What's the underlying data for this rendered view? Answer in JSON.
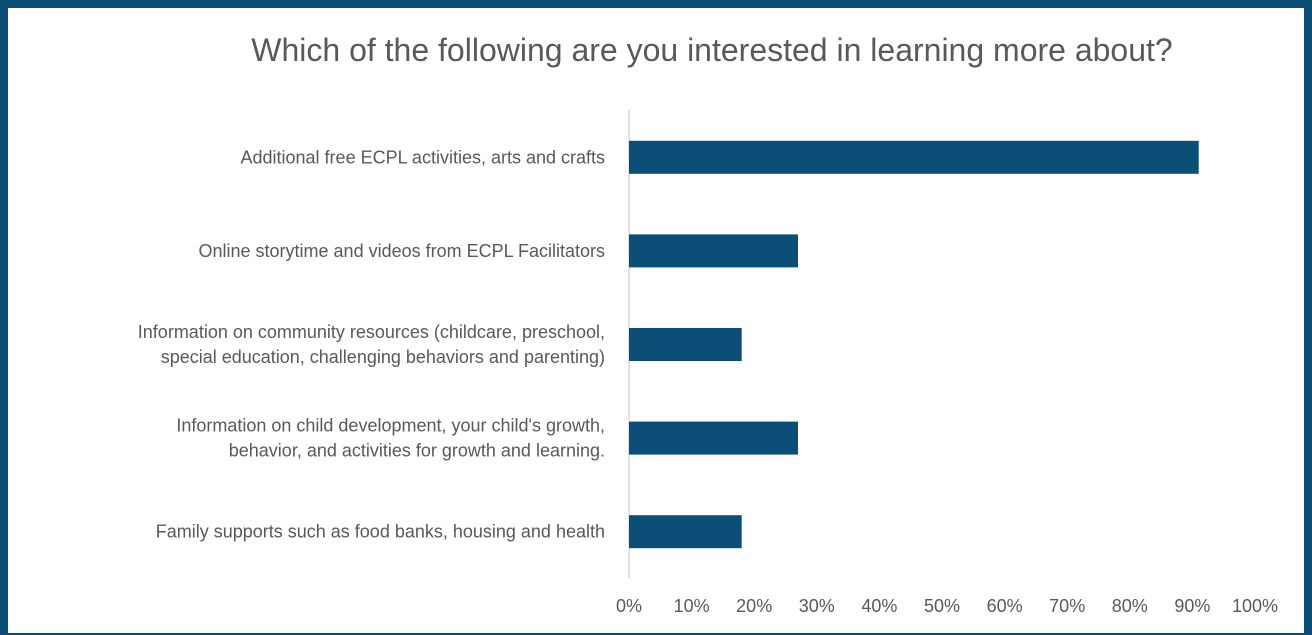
{
  "chart_data": {
    "type": "bar",
    "orientation": "horizontal",
    "title": "Which of the following are you interested in learning more about?",
    "categories": [
      [
        "Additional free ECPL activities, arts and crafts"
      ],
      [
        "Online storytime and videos from ECPL Facilitators"
      ],
      [
        "Information on community resources (childcare, preschool,",
        "special education, challenging behaviors and parenting)"
      ],
      [
        "Information on child development, your child's growth,",
        "behavior, and activities for growth and learning."
      ],
      [
        "Family supports such as food banks, housing and health"
      ]
    ],
    "values": [
      91,
      27,
      18,
      27,
      18
    ],
    "value_unit": "%",
    "xlim": [
      0,
      100
    ],
    "x_ticks": [
      "0%",
      "10%",
      "20%",
      "30%",
      "40%",
      "50%",
      "60%",
      "70%",
      "80%",
      "90%",
      "100%"
    ],
    "grid": false,
    "legend": "none",
    "colors": {
      "bar": "#0b4f79",
      "frame": "#0b4f79",
      "axis": "#d9d9d9",
      "text": "#595959"
    }
  }
}
